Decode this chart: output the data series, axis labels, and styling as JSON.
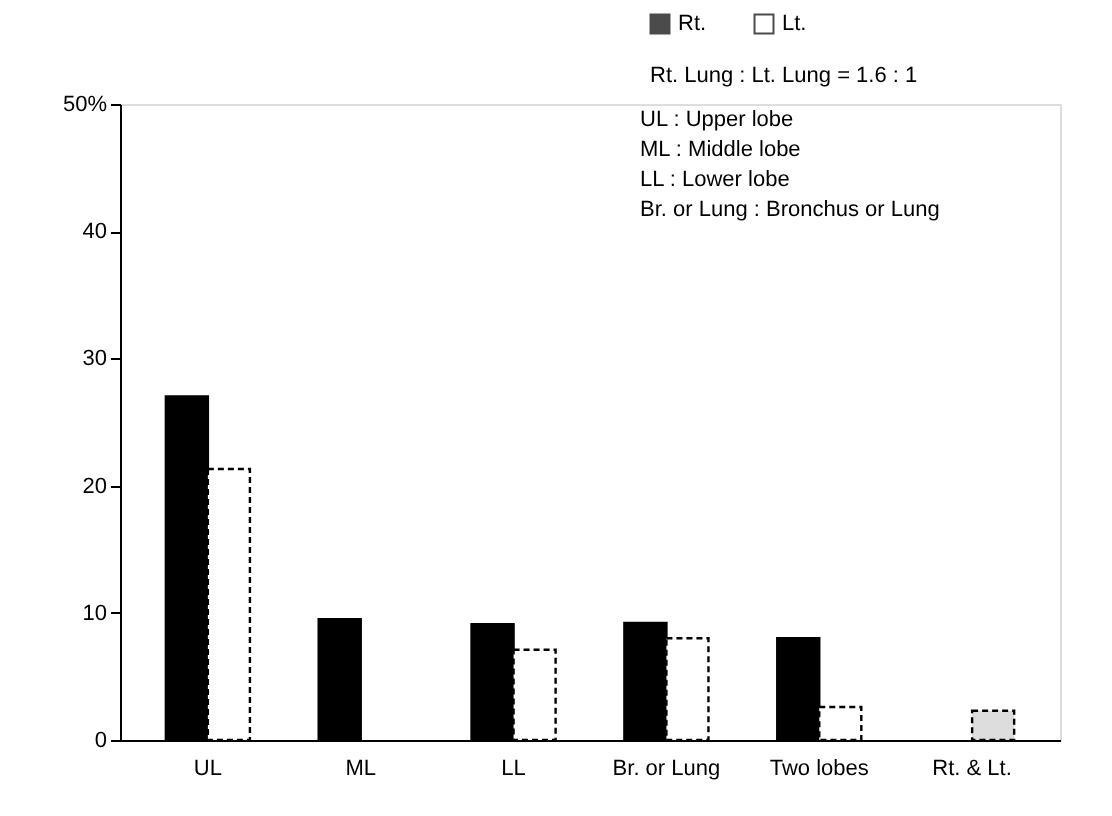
{
  "chart_data": {
    "type": "bar",
    "categories": [
      "UL",
      "ML",
      "LL",
      "Br. or Lung",
      "Two lobes",
      "Rt. & Lt."
    ],
    "series": [
      {
        "name": "Rt.",
        "color": "#000000",
        "values": [
          27,
          9.5,
          9.1,
          9.2,
          8.0,
          null
        ]
      },
      {
        "name": "Lt.",
        "color": "#ffffff",
        "colors": [
          "#ffffff",
          "#ffffff",
          "#ffffff",
          "#ffffff",
          "#ffffff",
          "#dddddd"
        ],
        "values": [
          21.3,
          null,
          7.1,
          8.0,
          2.6,
          2.3
        ]
      }
    ],
    "ylim": [
      0,
      50
    ],
    "yticks": [
      0,
      10,
      20,
      30,
      40,
      {
        "value": 50,
        "label": "50%"
      }
    ],
    "grid": false,
    "legend": "top right",
    "annotations": [
      "Rt. Lung : Lt. Lung = 1.6 : 1",
      "UL : Upper lobe",
      "ML : Middle lobe",
      "LL : Lower lobe",
      "Br. or Lung : Bronchus or Lung"
    ]
  }
}
